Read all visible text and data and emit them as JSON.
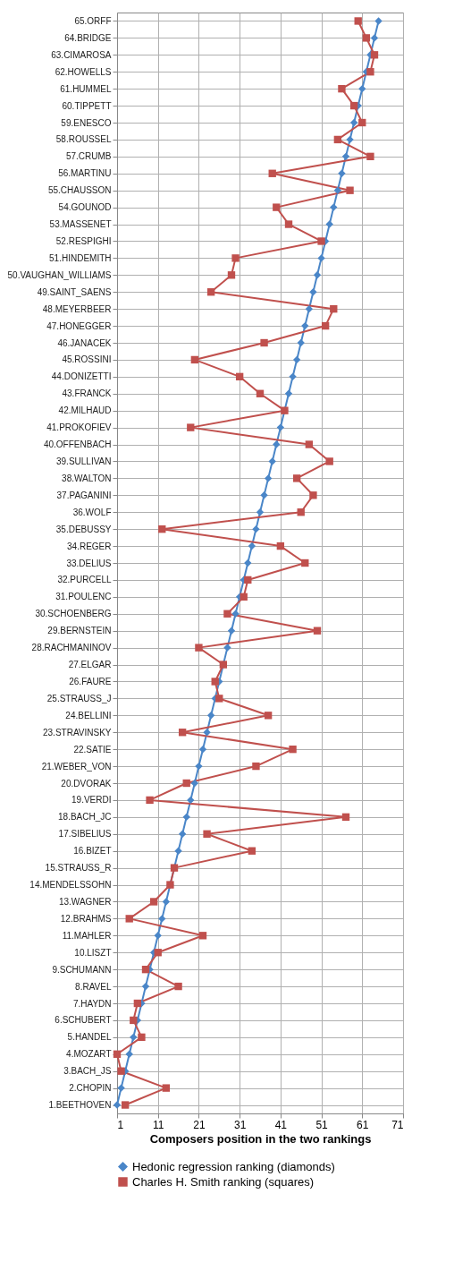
{
  "chart_data": {
    "type": "line",
    "orientation": "horizontal",
    "xlabel": "Composers position in the two rankings",
    "categories": [
      "65.ORFF",
      "64.BRIDGE",
      "63.CIMAROSA",
      "62.HOWELLS",
      "61.HUMMEL",
      "60.TIPPETT",
      "59.ENESCO",
      "58.ROUSSEL",
      "57.CRUMB",
      "56.MARTINU",
      "55.CHAUSSON",
      "54.GOUNOD",
      "53.MASSENET",
      "52.RESPIGHI",
      "51.HINDEMITH",
      "50.VAUGHAN_WILLIAMS",
      "49.SAINT_SAENS",
      "48.MEYERBEER",
      "47.HONEGGER",
      "46.JANACEK",
      "45.ROSSINI",
      "44.DONIZETTI",
      "43.FRANCK",
      "42.MILHAUD",
      "41.PROKOFIEV",
      "40.OFFENBACH",
      "39.SULLIVAN",
      "38.WALTON",
      "37.PAGANINI",
      "36.WOLF",
      "35.DEBUSSY",
      "34.REGER",
      "33.DELIUS",
      "32.PURCELL",
      "31.POULENC",
      "30.SCHOENBERG",
      "29.BERNSTEIN",
      "28.RACHMANINOV",
      "27.ELGAR",
      "26.FAURE",
      "25.STRAUSS_J",
      "24.BELLINI",
      "23.STRAVINSKY",
      "22.SATIE",
      "21.WEBER_VON",
      "20.DVORAK",
      "19.VERDI",
      "18.BACH_JC",
      "17.SIBELIUS",
      "16.BIZET",
      "15.STRAUSS_R",
      "14.MENDELSSOHN",
      "13.WAGNER",
      "12.BRAHMS",
      "11.MAHLER",
      "10.LISZT",
      "9.SCHUMANN",
      "8.RAVEL",
      "7.HAYDN",
      "6.SCHUBERT",
      "5.HANDEL",
      "4.MOZART",
      "3.BACH_JS",
      "2.CHOPIN",
      "1.BEETHOVEN"
    ],
    "series": [
      {
        "name": "Hedonic regression ranking (diamonds)",
        "color": "#4a86c8",
        "marker": "diamond",
        "values": [
          65,
          64,
          63,
          62,
          61,
          60,
          59,
          58,
          57,
          56,
          55,
          54,
          53,
          52,
          51,
          50,
          49,
          48,
          47,
          46,
          45,
          44,
          43,
          42,
          41,
          40,
          39,
          38,
          37,
          36,
          35,
          34,
          33,
          32,
          31,
          30,
          29,
          28,
          27,
          26,
          25,
          24,
          23,
          22,
          21,
          20,
          19,
          18,
          17,
          16,
          15,
          14,
          13,
          12,
          11,
          10,
          9,
          8,
          7,
          6,
          5,
          4,
          3,
          2,
          1
        ]
      },
      {
        "name": "Charles H. Smith ranking (squares)",
        "color": "#c0504d",
        "marker": "square",
        "values": [
          60,
          62,
          64,
          63,
          56,
          59,
          61,
          55,
          63,
          39,
          58,
          40,
          43,
          51,
          30,
          29,
          24,
          54,
          52,
          37,
          20,
          31,
          36,
          42,
          19,
          48,
          53,
          45,
          49,
          46,
          12,
          41,
          47,
          33,
          32,
          28,
          50,
          21,
          27,
          25,
          26,
          38,
          17,
          44,
          35,
          18,
          9,
          57,
          23,
          34,
          15,
          14,
          10,
          4,
          22,
          11,
          8,
          16,
          6,
          5,
          7,
          1,
          2,
          13,
          3
        ]
      }
    ],
    "xlim": [
      1,
      71
    ],
    "xticks": [
      1,
      11,
      21,
      31,
      41,
      51,
      61,
      71
    ],
    "grid": true,
    "legend": "bottom"
  }
}
